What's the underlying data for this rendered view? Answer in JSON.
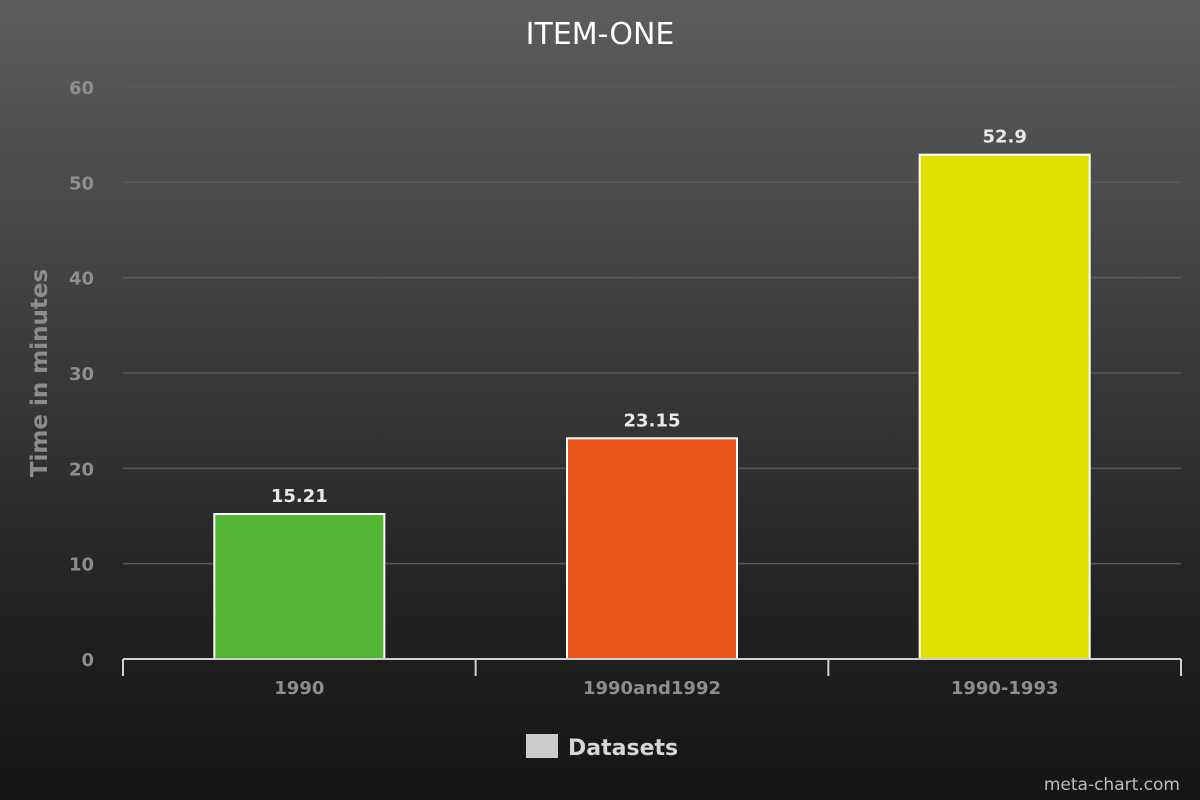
{
  "chart_data": {
    "type": "bar",
    "title": "ITEM-ONE",
    "xlabel": "",
    "ylabel": "Time in minutes",
    "categories": [
      "1990",
      "1990and1992",
      "1990-1993"
    ],
    "values": [
      15.21,
      23.15,
      52.9
    ],
    "value_labels": [
      "15.21",
      "23.15",
      "52.9"
    ],
    "bar_colors": [
      "#52b533",
      "#e9561b",
      "#dfe000"
    ],
    "ylim": [
      0,
      60
    ],
    "y_ticks": [
      "0",
      "10",
      "20",
      "30",
      "40",
      "50",
      "60"
    ],
    "grid": true,
    "legend": {
      "position": "bottom",
      "entries": [
        {
          "label": "Datasets",
          "color": "#cccccc"
        }
      ]
    }
  },
  "credit": "meta-chart.com"
}
